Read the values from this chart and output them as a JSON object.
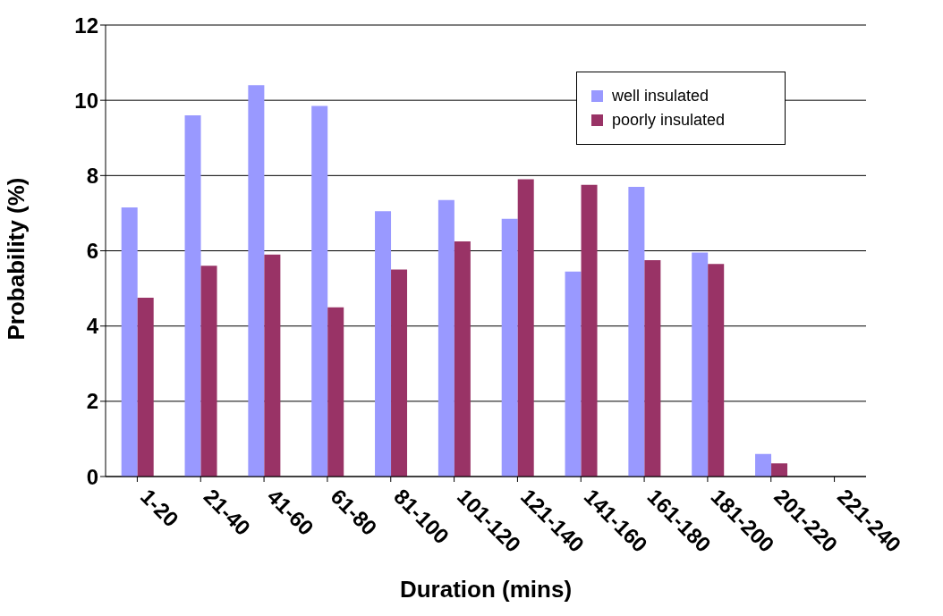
{
  "chart_data": {
    "type": "bar",
    "xlabel": "Duration (mins)",
    "ylabel": "Probability (%)",
    "categories": [
      "1-20",
      "21-40",
      "41-60",
      "61-80",
      "81-100",
      "101-120",
      "121-140",
      "141-160",
      "161-180",
      "181-200",
      "201-220",
      "221-240"
    ],
    "series": [
      {
        "name": "well insulated",
        "color": "#9999ff",
        "values": [
          7.15,
          9.6,
          10.4,
          9.85,
          7.05,
          7.35,
          6.85,
          5.45,
          7.7,
          5.95,
          0.6,
          null
        ]
      },
      {
        "name": "poorly insulated",
        "color": "#993366",
        "values": [
          4.75,
          5.6,
          5.9,
          4.5,
          5.5,
          6.25,
          7.9,
          7.75,
          5.75,
          5.65,
          0.35,
          null
        ]
      }
    ],
    "ylim": [
      0,
      12
    ],
    "yticks": [
      0,
      2,
      4,
      6,
      8,
      10,
      12
    ],
    "grid": "y",
    "legend": "top right"
  }
}
